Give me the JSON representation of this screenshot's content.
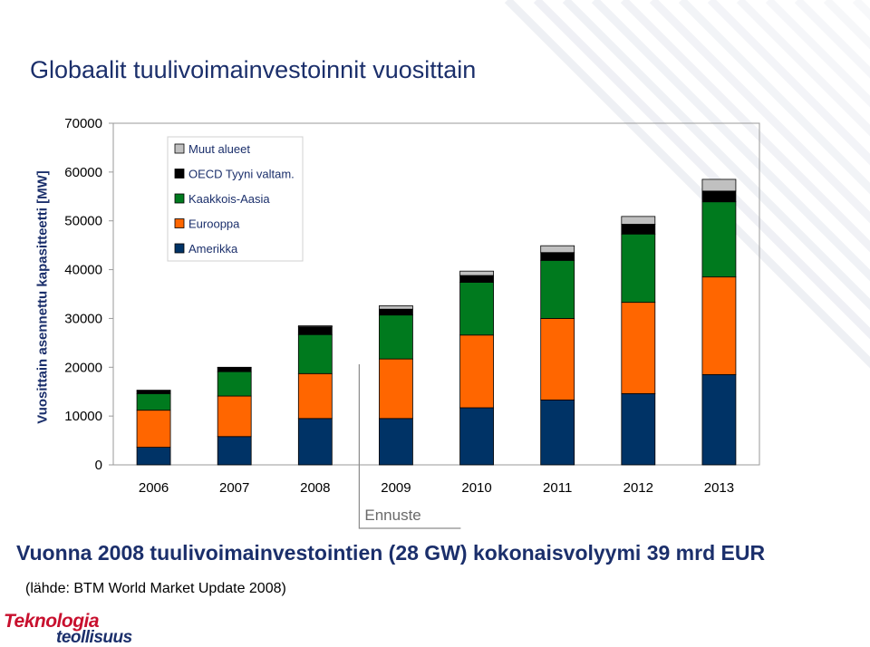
{
  "title": "Globaalit tuulivoimainvestoinnit vuosittain",
  "summary": "Vuonna 2008 tuulivoimainvestointien (28 GW) kokonaisvolyymi 39 mrd EUR",
  "source": "(lähde: BTM World Market Update 2008)",
  "logo": {
    "line1": "Teknologia",
    "line2": "teollisuus"
  },
  "colors": {
    "title": "#1b2f6b",
    "logo_red": "#c8102e",
    "background_pattern": "#eceef3"
  },
  "chart_data": {
    "type": "bar",
    "stacked": true,
    "categories": [
      "2006",
      "2007",
      "2008",
      "2009",
      "2010",
      "2011",
      "2012",
      "2013"
    ],
    "series": [
      {
        "name": "Amerikka",
        "color": "#003366",
        "values": [
          3600,
          5800,
          9500,
          9500,
          11700,
          13300,
          14600,
          18500
        ]
      },
      {
        "name": "Eurooppa",
        "color": "#ff6600",
        "values": [
          7600,
          8300,
          9200,
          12200,
          14900,
          16700,
          18700,
          20000
        ]
      },
      {
        "name": "Kaakkois-Aasia",
        "color": "#007a1e",
        "values": [
          3400,
          5000,
          8000,
          9000,
          10800,
          11900,
          14000,
          15400
        ]
      },
      {
        "name": "OECD Tyyni valtam.",
        "color": "#000000",
        "values": [
          600,
          800,
          1600,
          1200,
          1400,
          1600,
          2000,
          2200
        ]
      },
      {
        "name": "Muut alueet",
        "color": "#c0c0c0",
        "values": [
          100,
          100,
          200,
          700,
          900,
          1400,
          1600,
          2400
        ]
      }
    ],
    "legend_order": [
      "Muut alueet",
      "OECD Tyyni valtam.",
      "Kaakkois-Aasia",
      "Eurooppa",
      "Amerikka"
    ],
    "ylabel": "Vuosittain asennettu kapasitteetti  [MW]",
    "xlabel": "",
    "ylim": [
      0,
      70000
    ],
    "yticks": [
      "0",
      "10000",
      "20000",
      "30000",
      "40000",
      "50000",
      "60000",
      "70000"
    ],
    "grid": false,
    "legend_position": "top-left",
    "annotation": {
      "text": "Ennuste",
      "from_category": "2009"
    }
  }
}
